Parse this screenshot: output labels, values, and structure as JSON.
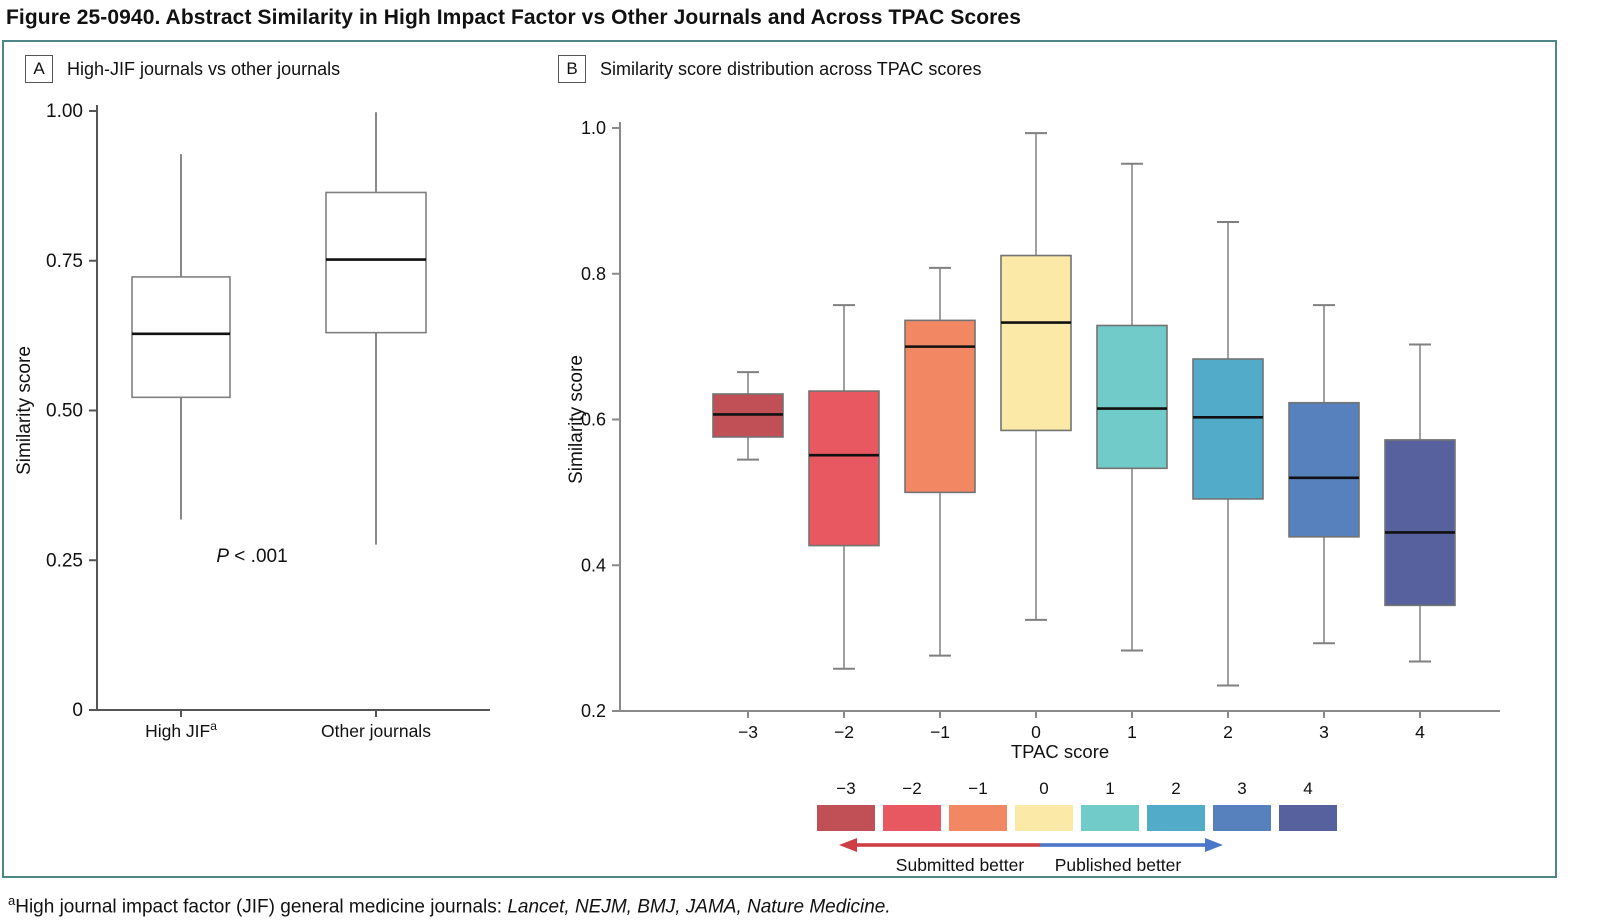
{
  "figure_title": "Figure 25-0940. Abstract Similarity in High Impact Factor vs Other Journals and Across TPAC Scores",
  "accent_border_color": "#4f8788",
  "panels": [
    {
      "label": "A",
      "title": "High-JIF journals vs other journals"
    },
    {
      "label": "B",
      "title": "Similarity score distribution across TPAC scores"
    }
  ],
  "chart_data": [
    {
      "type": "box",
      "panel": "A",
      "title": "High-JIF journals vs other journals",
      "ylabel": "Similarity score",
      "ylim": [
        0,
        1
      ],
      "yticks": [
        {
          "v": 0,
          "label": "0"
        },
        {
          "v": 0.25,
          "label": "0.25"
        },
        {
          "v": 0.5,
          "label": "0.50"
        },
        {
          "v": 0.75,
          "label": "0.75"
        },
        {
          "v": 1.0,
          "label": "1.00"
        }
      ],
      "categories": [
        {
          "label": "High JIF",
          "sup": "a"
        },
        {
          "label": "Other journals",
          "sup": ""
        }
      ],
      "boxes": [
        {
          "lo": 0.318,
          "q1": 0.522,
          "med": 0.628,
          "q3": 0.723,
          "hi": 0.928
        },
        {
          "lo": 0.276,
          "q1": 0.63,
          "med": 0.752,
          "q3": 0.864,
          "hi": 0.998
        }
      ],
      "box_fills": [
        "#ffffff",
        "#ffffff"
      ],
      "annotation": {
        "italic": "P",
        "text": " < .001"
      },
      "grid": false,
      "whisker_caps": false
    },
    {
      "type": "box",
      "panel": "B",
      "title": "Similarity score distribution across TPAC scores",
      "ylabel": "Similarity score",
      "xlabel": "TPAC score",
      "ylim": [
        0.2,
        1.0
      ],
      "yticks": [
        {
          "v": 0.2,
          "label": "0.2"
        },
        {
          "v": 0.4,
          "label": "0.4"
        },
        {
          "v": 0.6,
          "label": "0.6"
        },
        {
          "v": 0.8,
          "label": "0.8"
        },
        {
          "v": 1.0,
          "label": "1.0"
        }
      ],
      "categories": [
        {
          "label": "−3",
          "sup": ""
        },
        {
          "label": "−2",
          "sup": ""
        },
        {
          "label": "−1",
          "sup": ""
        },
        {
          "label": "0",
          "sup": ""
        },
        {
          "label": "1",
          "sup": ""
        },
        {
          "label": "2",
          "sup": ""
        },
        {
          "label": "3",
          "sup": ""
        },
        {
          "label": "4",
          "sup": ""
        }
      ],
      "boxes": [
        {
          "lo": 0.545,
          "q1": 0.576,
          "med": 0.607,
          "q3": 0.635,
          "hi": 0.665
        },
        {
          "lo": 0.258,
          "q1": 0.427,
          "med": 0.551,
          "q3": 0.639,
          "hi": 0.757
        },
        {
          "lo": 0.276,
          "q1": 0.5,
          "med": 0.7,
          "q3": 0.736,
          "hi": 0.808
        },
        {
          "lo": 0.325,
          "q1": 0.585,
          "med": 0.733,
          "q3": 0.825,
          "hi": 0.993
        },
        {
          "lo": 0.283,
          "q1": 0.533,
          "med": 0.615,
          "q3": 0.729,
          "hi": 0.951
        },
        {
          "lo": 0.235,
          "q1": 0.491,
          "med": 0.603,
          "q3": 0.683,
          "hi": 0.871
        },
        {
          "lo": 0.293,
          "q1": 0.439,
          "med": 0.52,
          "q3": 0.623,
          "hi": 0.757
        },
        {
          "lo": 0.268,
          "q1": 0.345,
          "med": 0.445,
          "q3": 0.572,
          "hi": 0.703
        }
      ],
      "box_fills": [
        "#c14f56",
        "#e75860",
        "#f28763",
        "#fbe9a8",
        "#70cbc9",
        "#52abc9",
        "#5681bd",
        "#57619d"
      ],
      "grid": false,
      "whisker_caps": true
    }
  ],
  "legend": {
    "labels": [
      "−3",
      "−2",
      "−1",
      "0",
      "1",
      "2",
      "3",
      "4"
    ],
    "colors": [
      "#c14f56",
      "#e75860",
      "#f28763",
      "#fbe9a8",
      "#70cbc9",
      "#52abc9",
      "#5681bd",
      "#57619d"
    ],
    "left_arrow": {
      "color": "#cf3e45",
      "label": "Submitted better"
    },
    "right_arrow": {
      "color": "#4b76ca",
      "label": "Published better"
    }
  },
  "footnote": {
    "sup": "a",
    "text": "High journal impact factor (JIF) general medicine journals: ",
    "italic": "Lancet, NEJM, BMJ, JAMA, Nature Medicine."
  }
}
